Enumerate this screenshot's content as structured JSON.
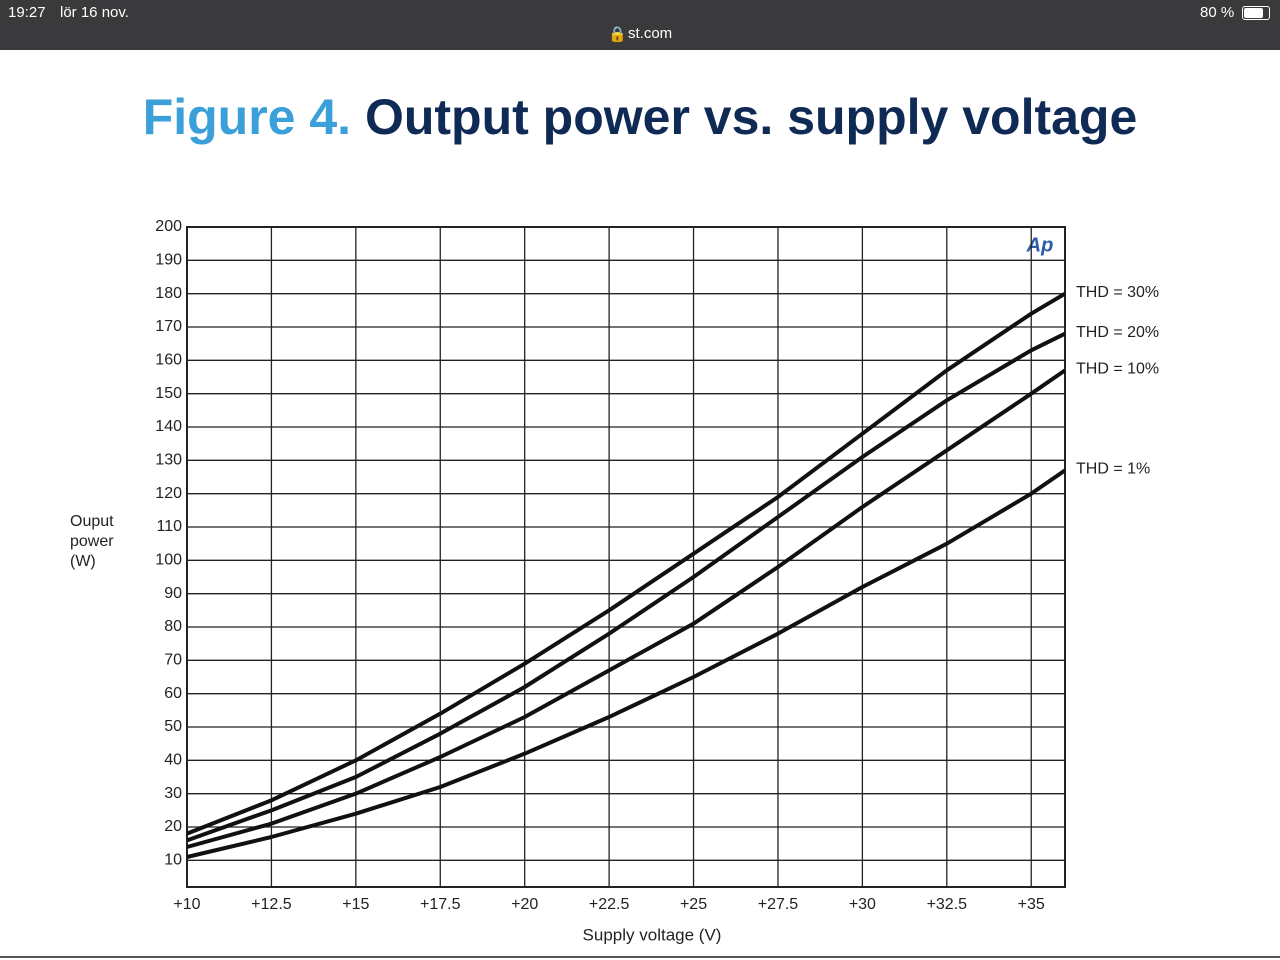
{
  "status_bar": {
    "time": "19:27",
    "date": "lör 16 nov.",
    "url": "st.com",
    "battery": "80 %"
  },
  "chart_data": {
    "type": "line",
    "figure_label": "Figure 4.",
    "title": "Output power vs. supply voltage",
    "xlabel": "Supply voltage (V)",
    "ylabel": "Ouput power (W)",
    "logo": "Ap",
    "x": [
      10,
      12.5,
      15,
      17.5,
      20,
      22.5,
      25,
      27.5,
      30,
      32.5,
      35,
      36
    ],
    "series": [
      {
        "name": "THD = 30%",
        "color": "#111111",
        "values": [
          18,
          28,
          40,
          54,
          69,
          85,
          102,
          119,
          138,
          157,
          174,
          180
        ]
      },
      {
        "name": "THD = 20%",
        "color": "#111111",
        "values": [
          16,
          25,
          35,
          48,
          62,
          78,
          95,
          113,
          131,
          148,
          163,
          168
        ]
      },
      {
        "name": "THD = 10%",
        "color": "#111111",
        "values": [
          14,
          21,
          30,
          41,
          53,
          67,
          81,
          98,
          116,
          133,
          150,
          157
        ]
      },
      {
        "name": "THD = 1%",
        "color": "#111111",
        "values": [
          11,
          17,
          24,
          32,
          42,
          53,
          65,
          78,
          92,
          105,
          120,
          127
        ]
      }
    ],
    "xlim": [
      10,
      36
    ],
    "ylim": [
      2,
      200
    ],
    "xticks": [
      {
        "value": 10,
        "label": "+10"
      },
      {
        "value": 12.5,
        "label": "+12.5"
      },
      {
        "value": 15,
        "label": "+15"
      },
      {
        "value": 17.5,
        "label": "+17.5"
      },
      {
        "value": 20,
        "label": "+20"
      },
      {
        "value": 22.5,
        "label": "+22.5"
      },
      {
        "value": 25,
        "label": "+25"
      },
      {
        "value": 27.5,
        "label": "+27.5"
      },
      {
        "value": 30,
        "label": "+30"
      },
      {
        "value": 32.5,
        "label": "+32.5"
      },
      {
        "value": 35,
        "label": "+35"
      }
    ],
    "yticks": [
      10,
      20,
      30,
      40,
      50,
      60,
      70,
      80,
      90,
      100,
      110,
      120,
      130,
      140,
      150,
      160,
      170,
      180,
      190,
      200
    ],
    "grid": true
  }
}
